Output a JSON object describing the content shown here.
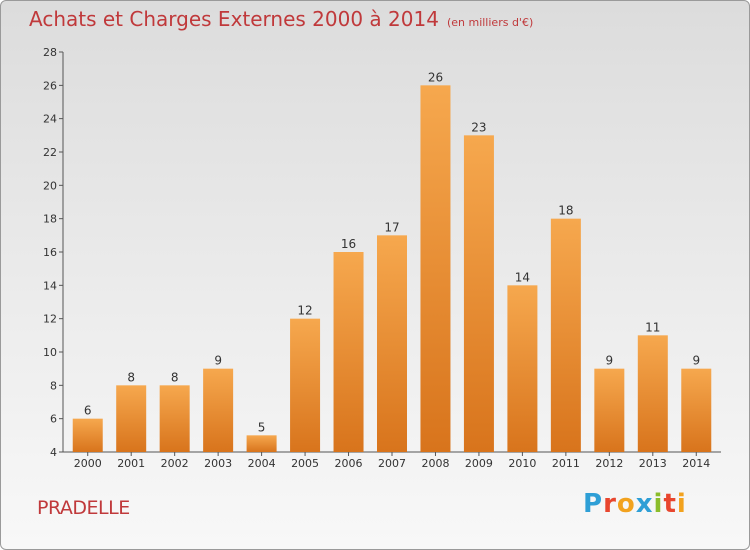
{
  "header": {
    "title": "Achats et Charges Externes 2000 à 2014",
    "subtitle": "(en milliers d'€)"
  },
  "footer": {
    "commune": "PRADELLE",
    "brand_letters": [
      "P",
      "r",
      "o",
      "x",
      "i",
      "t",
      "i"
    ]
  },
  "colors": {
    "title": "#c0393b",
    "bar_light": "#f6a84e",
    "bar_dark": "#d8741c",
    "brand": [
      "#2e9fd6",
      "#e8462e",
      "#f2a21e",
      "#2e9fd6",
      "#8bbd2b",
      "#e8462e",
      "#f2a21e"
    ]
  },
  "chart_data": {
    "type": "bar",
    "categories": [
      "2000",
      "2001",
      "2002",
      "2003",
      "2004",
      "2005",
      "2006",
      "2007",
      "2008",
      "2009",
      "2010",
      "2011",
      "2012",
      "2013",
      "2014"
    ],
    "values": [
      6,
      8,
      8,
      9,
      5,
      12,
      16,
      17,
      26,
      23,
      14,
      18,
      9,
      11,
      9
    ],
    "title": "Achats et Charges Externes 2000 à 2014",
    "ylim": [
      4,
      28
    ],
    "yticks": [
      4,
      6,
      8,
      10,
      12,
      14,
      16,
      18,
      20,
      22,
      24,
      26,
      28
    ],
    "grid": false,
    "data_labels": true
  }
}
